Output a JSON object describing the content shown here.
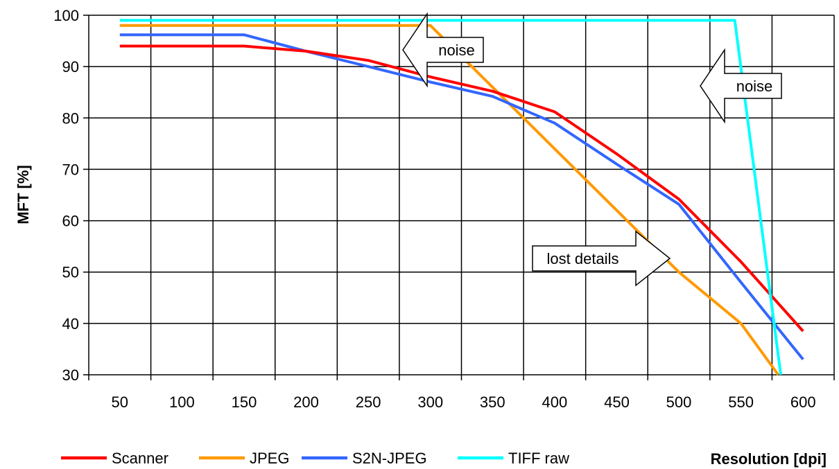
{
  "chart_data": {
    "type": "line",
    "title": "",
    "xlabel": "Resolution [dpi]",
    "ylabel": "MFT [%]",
    "x_ticks": [
      50,
      100,
      150,
      200,
      250,
      300,
      350,
      400,
      450,
      500,
      550,
      600
    ],
    "ylim": [
      30,
      100
    ],
    "y_ticks": [
      30,
      40,
      50,
      60,
      70,
      80,
      90,
      100
    ],
    "grid": true,
    "legend_position": "bottom-left",
    "series": [
      {
        "name": "Scanner",
        "color": "#ff0000",
        "points": [
          [
            50,
            94
          ],
          [
            150,
            94
          ],
          [
            200,
            93
          ],
          [
            250,
            91.2
          ],
          [
            300,
            88
          ],
          [
            350,
            85.2
          ],
          [
            400,
            81.2
          ],
          [
            450,
            73
          ],
          [
            500,
            64.2
          ],
          [
            550,
            52
          ],
          [
            600,
            38.5
          ]
        ]
      },
      {
        "name": "JPEG",
        "color": "#ff9900",
        "points": [
          [
            50,
            98
          ],
          [
            150,
            98
          ],
          [
            200,
            98
          ],
          [
            250,
            98
          ],
          [
            300,
            98
          ],
          [
            350,
            86
          ],
          [
            400,
            74
          ],
          [
            450,
            62
          ],
          [
            500,
            50
          ],
          [
            550,
            40
          ],
          [
            580,
            30
          ]
        ]
      },
      {
        "name": "S2N-JPEG",
        "color": "#3366ff",
        "points": [
          [
            50,
            96.2
          ],
          [
            150,
            96.2
          ],
          [
            200,
            93
          ],
          [
            250,
            90
          ],
          [
            300,
            87
          ],
          [
            350,
            84.2
          ],
          [
            400,
            79
          ],
          [
            450,
            71
          ],
          [
            500,
            63.2
          ],
          [
            550,
            48
          ],
          [
            600,
            33
          ]
        ]
      },
      {
        "name": "TIFF raw",
        "color": "#00ffff",
        "points": [
          [
            50,
            99
          ],
          [
            150,
            99
          ],
          [
            200,
            99
          ],
          [
            250,
            99
          ],
          [
            300,
            99
          ],
          [
            350,
            99
          ],
          [
            400,
            99
          ],
          [
            450,
            99
          ],
          [
            500,
            99
          ],
          [
            545,
            99
          ],
          [
            582,
            30
          ]
        ]
      }
    ],
    "annotations": [
      {
        "text": "noise",
        "direction": "left",
        "near": [
          300,
          94
        ]
      },
      {
        "text": "noise",
        "direction": "left",
        "near": [
          530,
          88
        ]
      },
      {
        "text": "lost details",
        "direction": "right",
        "near": [
          420,
          53
        ]
      }
    ]
  }
}
